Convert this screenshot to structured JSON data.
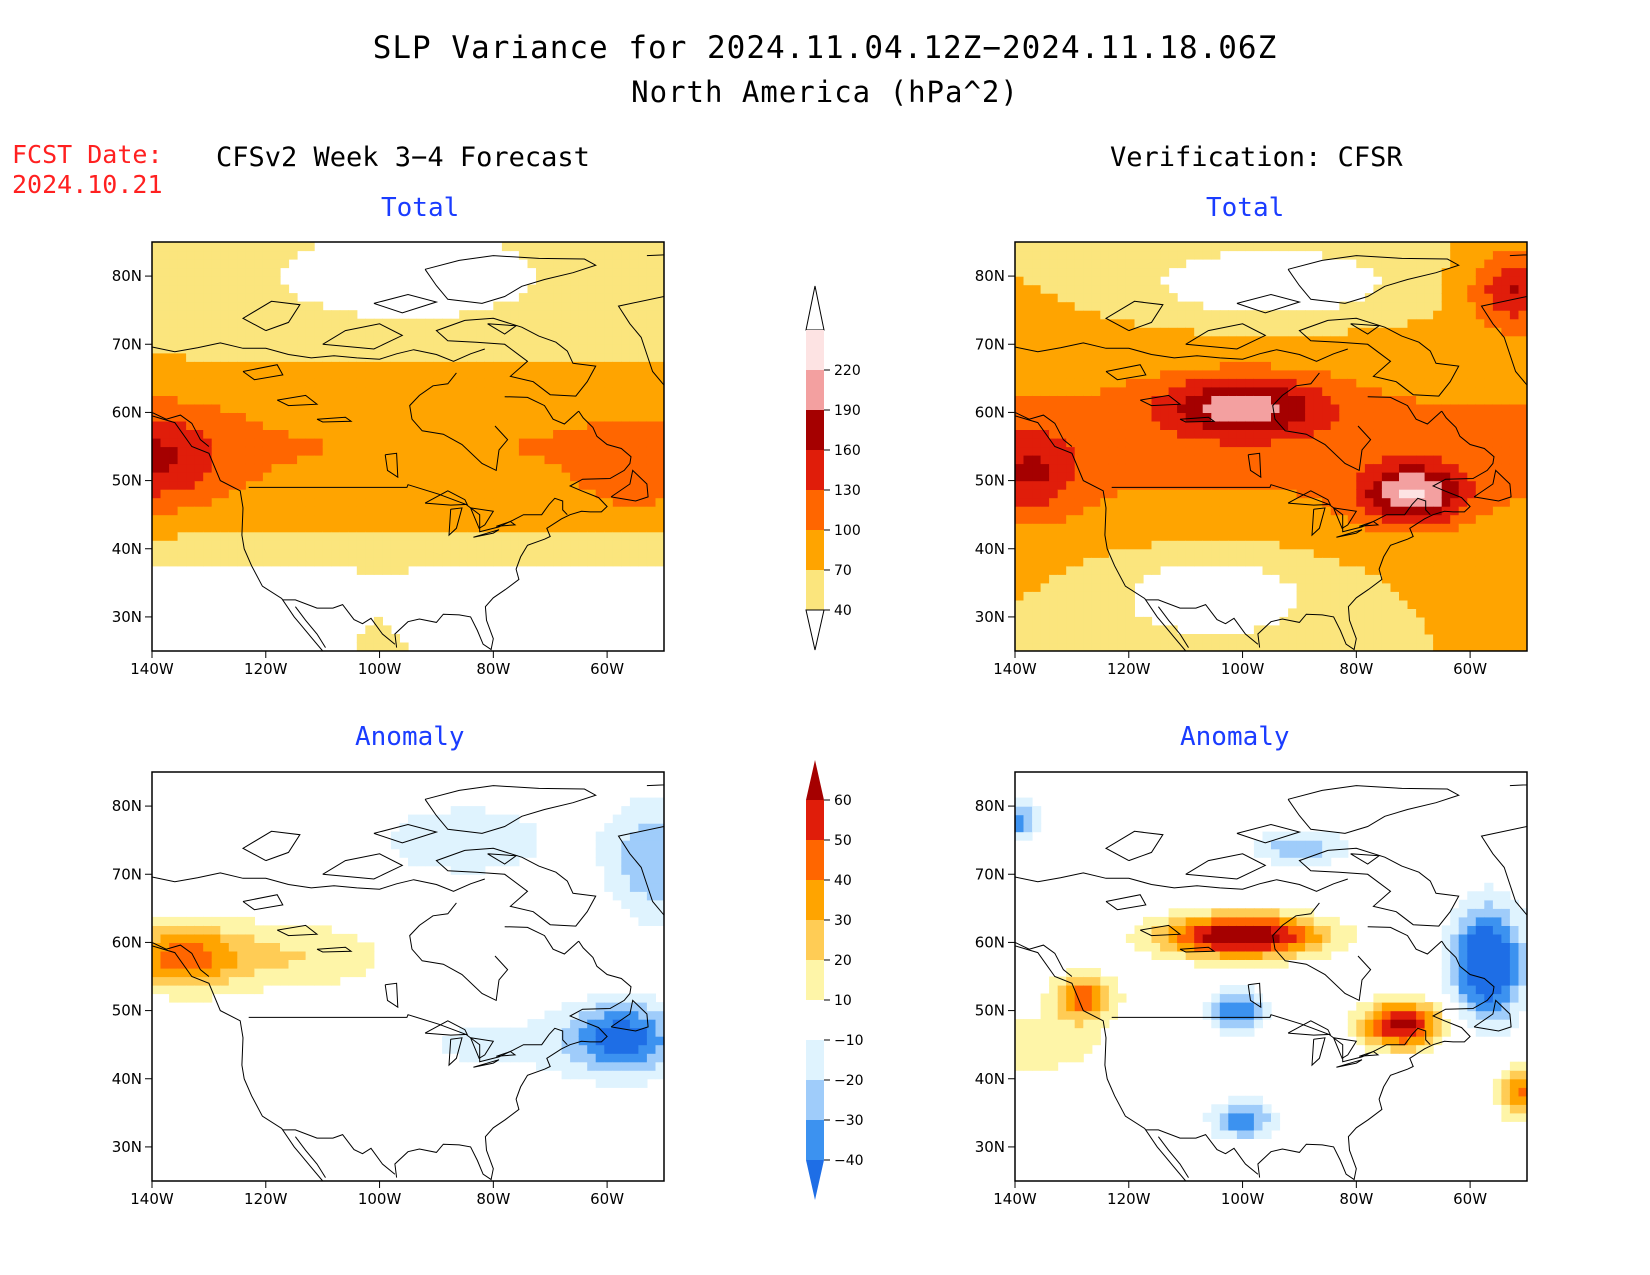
{
  "title": "SLP Variance for 2024.11.04.12Z−2024.11.18.06Z",
  "subtitle": "North America (hPa^2)",
  "fcst": {
    "line1": "FCST Date:",
    "line2": "2024.10.21"
  },
  "columns": {
    "forecast": "CFSv2 Week 3−4 Forecast",
    "verification": "Verification: CFSR"
  },
  "panel_titles": {
    "total": "Total",
    "anomaly": "Anomaly"
  },
  "colors": {
    "total": [
      "#fbe57d",
      "#ffa400",
      "#ff6600",
      "#e01d0a",
      "#a50000",
      "#f3a0a0",
      "#fde3e3"
    ],
    "anomaly": [
      "#1e6ee6",
      "#3c92f0",
      "#9fccfa",
      "#dff3fe",
      "#ffffff",
      "#fef5a8",
      "#ffcc55",
      "#ffa400",
      "#ff6600",
      "#e01d0a",
      "#a50000"
    ],
    "title_blue": "#1a3cff",
    "fcst_red": "#ff2020"
  },
  "chart_data": [
    {
      "type": "heatmap",
      "name": "forecast-total",
      "x_ticks": [
        "140W",
        "120W",
        "100W",
        "80W",
        "60W"
      ],
      "y_ticks": [
        "30N",
        "40N",
        "50N",
        "60N",
        "70N",
        "80N"
      ],
      "xlim": [
        -140,
        -50
      ],
      "ylim": [
        25,
        85
      ],
      "contour_levels": [
        40,
        70,
        100,
        130,
        160,
        190,
        220
      ],
      "regions": [
        {
          "lon": -140,
          "lat": 55,
          "value": 145
        },
        {
          "lon": -125,
          "lat": 57,
          "value": 110
        },
        {
          "lon": -100,
          "lat": 55,
          "value": 100
        },
        {
          "lon": -80,
          "lat": 55,
          "value": 85
        },
        {
          "lon": -55,
          "lat": 50,
          "value": 110
        },
        {
          "lon": -110,
          "lat": 73,
          "value": 45
        },
        {
          "lon": -90,
          "lat": 78,
          "value": 20
        }
      ]
    },
    {
      "type": "heatmap",
      "name": "verification-total",
      "x_ticks": [
        "140W",
        "120W",
        "100W",
        "80W",
        "60W"
      ],
      "y_ticks": [
        "30N",
        "40N",
        "50N",
        "60N",
        "70N",
        "80N"
      ],
      "xlim": [
        -140,
        -50
      ],
      "ylim": [
        25,
        85
      ],
      "contour_levels": [
        40,
        70,
        100,
        130,
        160,
        190,
        220
      ],
      "regions": [
        {
          "lon": -100,
          "lat": 60,
          "value": 175
        },
        {
          "lon": -70,
          "lat": 48,
          "value": 190
        },
        {
          "lon": -135,
          "lat": 52,
          "value": 135
        },
        {
          "lon": -55,
          "lat": 78,
          "value": 165
        },
        {
          "lon": -90,
          "lat": 78,
          "value": 20
        },
        {
          "lon": -100,
          "lat": 35,
          "value": 20
        }
      ]
    },
    {
      "type": "heatmap",
      "name": "forecast-anomaly",
      "x_ticks": [
        "140W",
        "120W",
        "100W",
        "80W",
        "60W"
      ],
      "y_ticks": [
        "30N",
        "40N",
        "50N",
        "60N",
        "70N",
        "80N"
      ],
      "xlim": [
        -140,
        -50
      ],
      "ylim": [
        25,
        85
      ],
      "contour_levels": [
        -40,
        -30,
        -20,
        -10,
        10,
        20,
        30,
        40,
        50,
        60
      ],
      "regions": [
        {
          "lon": -135,
          "lat": 60,
          "value": 35
        },
        {
          "lon": -125,
          "lat": 58,
          "value": 25
        },
        {
          "lon": -110,
          "lat": 55,
          "value": 12
        },
        {
          "lon": -60,
          "lat": 47,
          "value": -35
        },
        {
          "lon": -55,
          "lat": 75,
          "value": -25
        },
        {
          "lon": -80,
          "lat": 73,
          "value": -12
        }
      ]
    },
    {
      "type": "heatmap",
      "name": "verification-anomaly",
      "x_ticks": [
        "140W",
        "120W",
        "100W",
        "80W",
        "60W"
      ],
      "y_ticks": [
        "30N",
        "40N",
        "50N",
        "60N",
        "70N",
        "80N"
      ],
      "xlim": [
        -140,
        -50
      ],
      "ylim": [
        25,
        85
      ],
      "contour_levels": [
        -40,
        -30,
        -20,
        -10,
        10,
        20,
        30,
        40,
        50,
        60
      ],
      "regions": [
        {
          "lon": -100,
          "lat": 61,
          "value": 60
        },
        {
          "lon": -72,
          "lat": 48,
          "value": 55
        },
        {
          "lon": -60,
          "lat": 58,
          "value": -40
        },
        {
          "lon": -100,
          "lat": 50,
          "value": -35
        },
        {
          "lon": -100,
          "lat": 34,
          "value": -30
        },
        {
          "lon": -128,
          "lat": 52,
          "value": 40
        },
        {
          "lon": -50,
          "lat": 38,
          "value": 35
        },
        {
          "lon": -135,
          "lat": 78,
          "value": -30
        }
      ]
    }
  ],
  "colorbars": {
    "total": {
      "labels": [
        "40",
        "70",
        "100",
        "130",
        "160",
        "190",
        "220"
      ]
    },
    "anomaly": {
      "labels": [
        "−40",
        "−30",
        "−20",
        "−10",
        "10",
        "20",
        "30",
        "40",
        "50",
        "60"
      ]
    }
  }
}
